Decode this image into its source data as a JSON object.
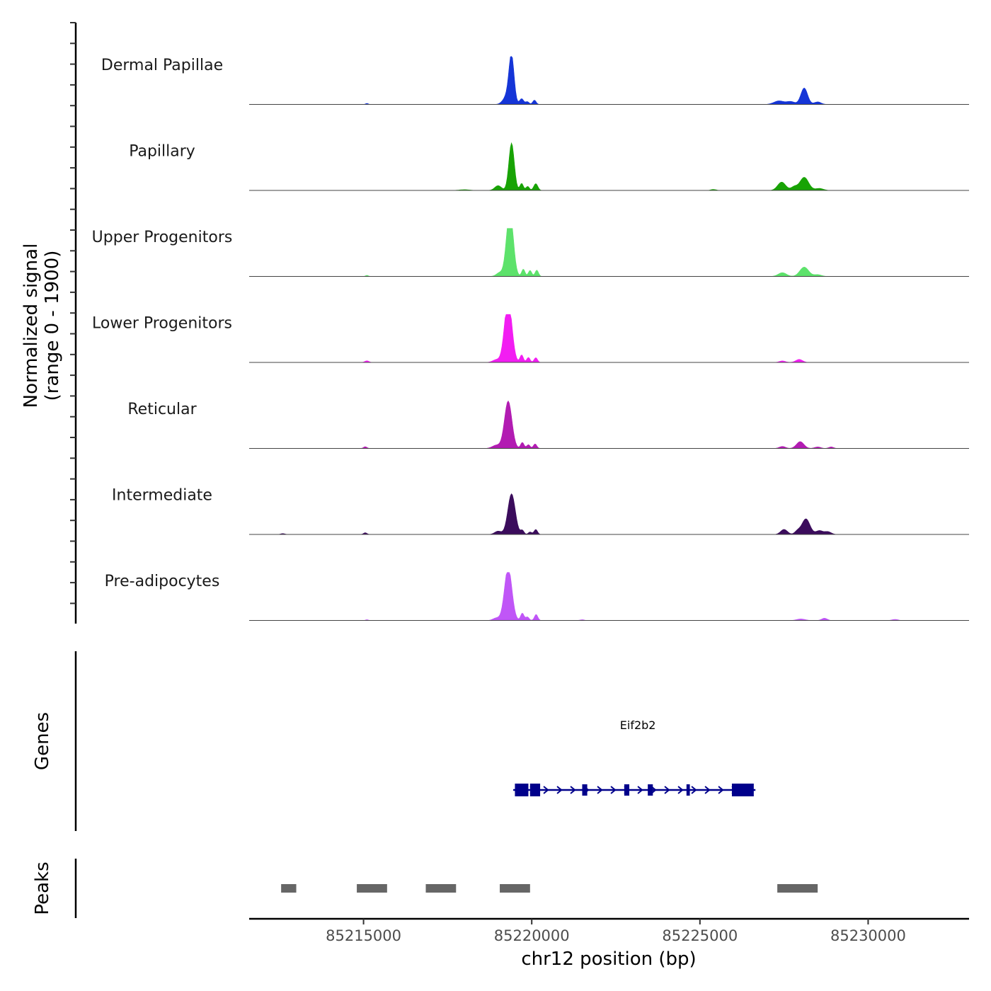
{
  "chart_data": {
    "type": "area",
    "title": "",
    "chromosome": "chr12",
    "xlabel": "chr12 position (bp)",
    "ylabel_line1": "Normalized signal",
    "ylabel_line2": "(range 0 - 1900)",
    "ylim": [
      0,
      1900
    ],
    "xlim": [
      85211600,
      85233000
    ],
    "x_ticks": [
      85215000,
      85220000,
      85225000,
      85230000
    ],
    "x_tick_labels": [
      "85215000",
      "85220000",
      "85225000",
      "85230000"
    ],
    "series": [
      {
        "name": "Dermal Papillae",
        "color": "#1535D7",
        "peaks": [
          {
            "center": 85219400,
            "width": 75,
            "height": 1800
          },
          {
            "center": 85219280,
            "width": 120,
            "height": 350
          },
          {
            "center": 85219700,
            "width": 60,
            "height": 230
          },
          {
            "center": 85219870,
            "width": 50,
            "height": 110
          },
          {
            "center": 85220080,
            "width": 50,
            "height": 170
          },
          {
            "center": 85228100,
            "width": 100,
            "height": 650
          },
          {
            "center": 85227350,
            "width": 150,
            "height": 140
          },
          {
            "center": 85227700,
            "width": 120,
            "height": 110
          },
          {
            "center": 85228500,
            "width": 100,
            "height": 100
          },
          {
            "center": 85215100,
            "width": 40,
            "height": 40
          }
        ]
      },
      {
        "name": "Papillary",
        "color": "#18A305",
        "peaks": [
          {
            "center": 85219400,
            "width": 80,
            "height": 1880
          },
          {
            "center": 85219000,
            "width": 100,
            "height": 190
          },
          {
            "center": 85219700,
            "width": 50,
            "height": 280
          },
          {
            "center": 85219880,
            "width": 50,
            "height": 160
          },
          {
            "center": 85220120,
            "width": 60,
            "height": 270
          },
          {
            "center": 85227430,
            "width": 120,
            "height": 330
          },
          {
            "center": 85227800,
            "width": 90,
            "height": 140
          },
          {
            "center": 85228100,
            "width": 130,
            "height": 520
          },
          {
            "center": 85228550,
            "width": 120,
            "height": 80
          },
          {
            "center": 85225400,
            "width": 80,
            "height": 40
          },
          {
            "center": 85218000,
            "width": 150,
            "height": 30
          }
        ]
      },
      {
        "name": "Upper Progenitors",
        "color": "#5DE26B",
        "peaks": [
          {
            "center": 85219350,
            "width": 100,
            "height": 2650
          },
          {
            "center": 85219050,
            "width": 100,
            "height": 150
          },
          {
            "center": 85219750,
            "width": 50,
            "height": 290
          },
          {
            "center": 85219950,
            "width": 50,
            "height": 240
          },
          {
            "center": 85220150,
            "width": 50,
            "height": 250
          },
          {
            "center": 85227450,
            "width": 120,
            "height": 150
          },
          {
            "center": 85228100,
            "width": 130,
            "height": 370
          },
          {
            "center": 85228500,
            "width": 110,
            "height": 70
          },
          {
            "center": 85215100,
            "width": 40,
            "height": 45
          }
        ]
      },
      {
        "name": "Lower Progenitors",
        "color": "#F21DF2",
        "peaks": [
          {
            "center": 85219300,
            "width": 110,
            "height": 2510
          },
          {
            "center": 85218950,
            "width": 110,
            "height": 110
          },
          {
            "center": 85219700,
            "width": 50,
            "height": 300
          },
          {
            "center": 85219900,
            "width": 50,
            "height": 200
          },
          {
            "center": 85220120,
            "width": 50,
            "height": 190
          },
          {
            "center": 85215100,
            "width": 60,
            "height": 65
          },
          {
            "center": 85227450,
            "width": 90,
            "height": 60
          },
          {
            "center": 85227950,
            "width": 100,
            "height": 120
          }
        ]
      },
      {
        "name": "Reticular",
        "color": "#B21CB2",
        "peaks": [
          {
            "center": 85219300,
            "width": 110,
            "height": 1880
          },
          {
            "center": 85218950,
            "width": 120,
            "height": 130
          },
          {
            "center": 85219720,
            "width": 50,
            "height": 240
          },
          {
            "center": 85219900,
            "width": 50,
            "height": 150
          },
          {
            "center": 85220100,
            "width": 50,
            "height": 180
          },
          {
            "center": 85215050,
            "width": 50,
            "height": 70
          },
          {
            "center": 85227450,
            "width": 90,
            "height": 80
          },
          {
            "center": 85227980,
            "width": 110,
            "height": 270
          },
          {
            "center": 85228500,
            "width": 90,
            "height": 60
          },
          {
            "center": 85228900,
            "width": 70,
            "height": 60
          }
        ]
      },
      {
        "name": "Intermediate",
        "color": "#3B0C5C",
        "peaks": [
          {
            "center": 85219400,
            "width": 110,
            "height": 1610
          },
          {
            "center": 85219000,
            "width": 100,
            "height": 130
          },
          {
            "center": 85219720,
            "width": 50,
            "height": 160
          },
          {
            "center": 85219950,
            "width": 50,
            "height": 100
          },
          {
            "center": 85220120,
            "width": 50,
            "height": 200
          },
          {
            "center": 85215050,
            "width": 50,
            "height": 70
          },
          {
            "center": 85227500,
            "width": 100,
            "height": 200
          },
          {
            "center": 85227900,
            "width": 80,
            "height": 130
          },
          {
            "center": 85228150,
            "width": 120,
            "height": 620
          },
          {
            "center": 85228550,
            "width": 100,
            "height": 150
          },
          {
            "center": 85228800,
            "width": 100,
            "height": 110
          },
          {
            "center": 85212600,
            "width": 60,
            "height": 35
          }
        ]
      },
      {
        "name": "Pre-adipocytes",
        "color": "#C056F7",
        "peaks": [
          {
            "center": 85219300,
            "width": 110,
            "height": 2110
          },
          {
            "center": 85218950,
            "width": 100,
            "height": 100
          },
          {
            "center": 85219720,
            "width": 50,
            "height": 290
          },
          {
            "center": 85219870,
            "width": 50,
            "height": 140
          },
          {
            "center": 85220130,
            "width": 50,
            "height": 240
          },
          {
            "center": 85215100,
            "width": 40,
            "height": 30
          },
          {
            "center": 85221500,
            "width": 60,
            "height": 30
          },
          {
            "center": 85228000,
            "width": 120,
            "height": 60
          },
          {
            "center": 85228700,
            "width": 80,
            "height": 90
          },
          {
            "center": 85230800,
            "width": 90,
            "height": 40
          }
        ]
      }
    ],
    "genes": [
      {
        "name": "Eif2b2",
        "strand": "+",
        "start": 85219450,
        "end": 85226650,
        "color": "#00008B",
        "exons": [
          [
            85219500,
            85219900
          ],
          [
            85219950,
            85220250
          ],
          [
            85221500,
            85221650
          ],
          [
            85222750,
            85222900
          ],
          [
            85223450,
            85223600
          ],
          [
            85224600,
            85224700
          ],
          [
            85225950,
            85226600
          ]
        ]
      }
    ],
    "peaks_track": {
      "color": "#666666",
      "regions": [
        [
          85212550,
          85213000
        ],
        [
          85214800,
          85215700
        ],
        [
          85216850,
          85217750
        ],
        [
          85219050,
          85219950
        ],
        [
          85227300,
          85228500
        ]
      ]
    },
    "panel_titles": {
      "genes": "Genes",
      "peaks": "Peaks"
    }
  }
}
